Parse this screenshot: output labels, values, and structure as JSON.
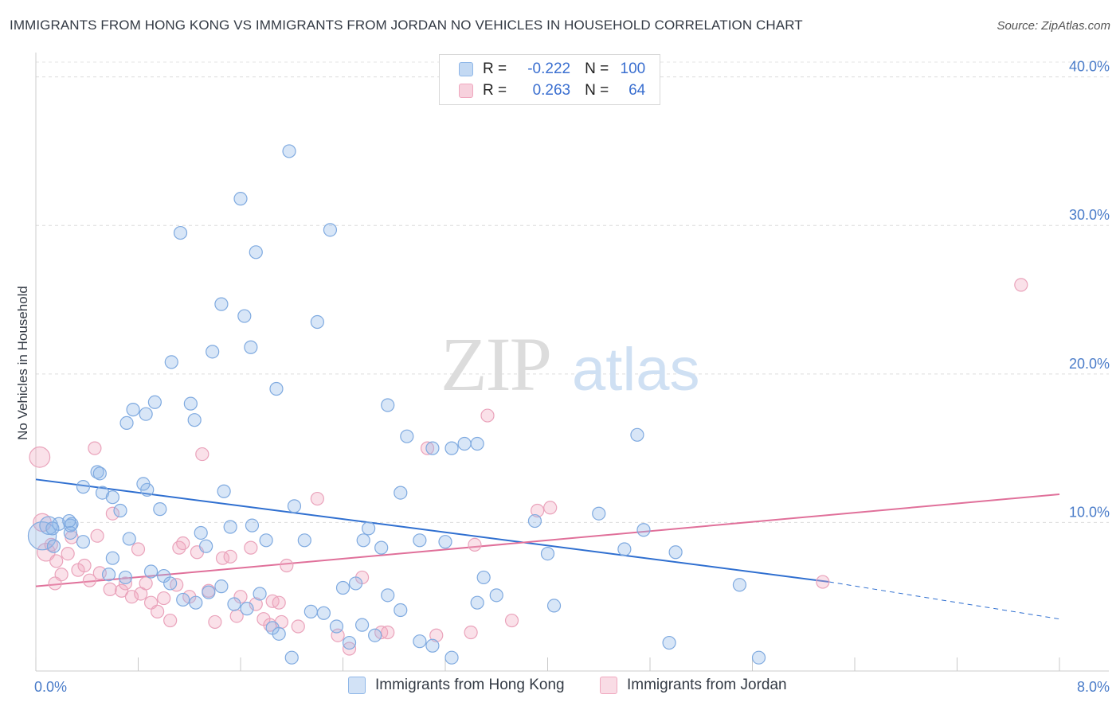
{
  "header": {
    "title": "IMMIGRANTS FROM HONG KONG VS IMMIGRANTS FROM JORDAN NO VEHICLES IN HOUSEHOLD CORRELATION CHART",
    "source": "Source: ZipAtlas.com"
  },
  "watermark": {
    "zip": "ZIP",
    "atlas": "atlas"
  },
  "legend": {
    "r_label": "R =",
    "n_label": "N =",
    "rows": [
      {
        "r": "-0.222",
        "n": "100",
        "color": "#8fb7e8"
      },
      {
        "r": "0.263",
        "n": "64",
        "color": "#f0a8bf"
      }
    ]
  },
  "bottom_legend": [
    {
      "label": "Immigrants from Hong Kong",
      "color": "#8fb7e8"
    },
    {
      "label": "Immigrants from Jordan",
      "color": "#f0a8bf"
    }
  ],
  "chart_data": {
    "type": "scatter",
    "title": "IMMIGRANTS FROM HONG KONG VS IMMIGRANTS FROM JORDAN NO VEHICLES IN HOUSEHOLD CORRELATION CHART",
    "xlabel": "",
    "ylabel": "No Vehicles in Household",
    "xlim": [
      0.0,
      8.0
    ],
    "ylim": [
      0.0,
      41.0
    ],
    "x_tick_labels": [
      "0.0%",
      "8.0%"
    ],
    "y_ticks": [
      10,
      20,
      30,
      40
    ],
    "y_tick_labels": [
      "10.0%",
      "20.0%",
      "30.0%",
      "40.0%"
    ],
    "grid": true,
    "colors": {
      "hong_kong": "#5b8fd6",
      "jordan": "#e6789c",
      "hk_line": "#2f6fd0",
      "jo_line": "#e0709a"
    },
    "series": [
      {
        "name": "Immigrants from Hong Kong",
        "trend": {
          "x0": 0.0,
          "y0": 12.9,
          "x1": 6.2,
          "y1": 6.0,
          "dash_to_x": 8.0,
          "dash_to_y": 3.5
        },
        "points": [
          [
            0.05,
            9.1,
            22
          ],
          [
            0.1,
            9.8,
            14
          ],
          [
            0.18,
            9.9,
            10
          ],
          [
            0.13,
            9.6,
            10
          ],
          [
            0.28,
            9.9,
            10
          ],
          [
            0.27,
            9.8,
            10
          ],
          [
            0.26,
            10.1,
            10
          ],
          [
            0.27,
            9.3,
            10
          ],
          [
            0.14,
            8.4,
            10
          ],
          [
            0.37,
            8.7,
            10
          ],
          [
            0.37,
            12.4,
            10
          ],
          [
            0.52,
            12.0,
            10
          ],
          [
            0.48,
            13.4,
            10
          ],
          [
            0.5,
            13.3,
            10
          ],
          [
            0.6,
            11.7,
            10
          ],
          [
            0.66,
            10.8,
            10
          ],
          [
            0.71,
            16.7,
            10
          ],
          [
            0.76,
            17.6,
            10
          ],
          [
            0.73,
            8.9,
            10
          ],
          [
            0.86,
            17.3,
            10
          ],
          [
            0.87,
            12.2,
            10
          ],
          [
            0.93,
            18.1,
            10
          ],
          [
            0.84,
            12.6,
            10
          ],
          [
            0.97,
            10.9,
            10
          ],
          [
            1.06,
            20.8,
            10
          ],
          [
            1.13,
            29.5,
            10
          ],
          [
            1.21,
            18.0,
            10
          ],
          [
            1.24,
            16.9,
            10
          ],
          [
            1.29,
            9.3,
            10
          ],
          [
            1.33,
            8.4,
            10
          ],
          [
            1.38,
            21.5,
            10
          ],
          [
            1.45,
            24.7,
            10
          ],
          [
            1.47,
            12.1,
            10
          ],
          [
            1.52,
            9.7,
            10
          ],
          [
            1.6,
            31.8,
            10
          ],
          [
            1.63,
            23.9,
            10
          ],
          [
            1.68,
            21.8,
            10
          ],
          [
            1.72,
            28.2,
            10
          ],
          [
            1.69,
            9.8,
            10
          ],
          [
            1.8,
            8.8,
            10
          ],
          [
            1.88,
            19.0,
            10
          ],
          [
            1.98,
            35.0,
            10
          ],
          [
            2.02,
            11.1,
            10
          ],
          [
            2.1,
            8.8,
            10
          ],
          [
            2.2,
            23.5,
            10
          ],
          [
            2.3,
            29.7,
            10
          ],
          [
            2.4,
            5.6,
            10
          ],
          [
            2.5,
            5.9,
            10
          ],
          [
            2.56,
            8.8,
            10
          ],
          [
            2.6,
            9.6,
            10
          ],
          [
            2.7,
            8.3,
            10
          ],
          [
            2.75,
            17.9,
            10
          ],
          [
            2.85,
            12.0,
            10
          ],
          [
            2.9,
            15.8,
            10
          ],
          [
            3.0,
            8.8,
            10
          ],
          [
            3.1,
            15.0,
            10
          ],
          [
            3.2,
            8.7,
            10
          ],
          [
            3.25,
            15.0,
            10
          ],
          [
            3.35,
            15.3,
            10
          ],
          [
            3.45,
            15.3,
            10
          ],
          [
            3.5,
            6.3,
            10
          ],
          [
            3.6,
            5.1,
            10
          ],
          [
            3.9,
            10.1,
            10
          ],
          [
            4.0,
            7.9,
            10
          ],
          [
            4.05,
            4.4,
            10
          ],
          [
            4.4,
            10.6,
            10
          ],
          [
            4.6,
            8.2,
            10
          ],
          [
            4.7,
            15.9,
            10
          ],
          [
            4.75,
            9.5,
            10
          ],
          [
            4.95,
            1.9,
            10
          ],
          [
            5.0,
            8.0,
            10
          ],
          [
            5.5,
            5.8,
            10
          ],
          [
            5.65,
            0.9,
            10
          ],
          [
            0.57,
            6.5,
            10
          ],
          [
            0.6,
            7.6,
            10
          ],
          [
            0.7,
            6.3,
            10
          ],
          [
            0.9,
            6.7,
            10
          ],
          [
            1.0,
            6.4,
            10
          ],
          [
            1.05,
            5.9,
            10
          ],
          [
            1.15,
            4.8,
            10
          ],
          [
            1.25,
            4.6,
            10
          ],
          [
            1.35,
            5.3,
            10
          ],
          [
            1.45,
            5.7,
            10
          ],
          [
            1.55,
            4.5,
            10
          ],
          [
            1.65,
            4.2,
            10
          ],
          [
            1.75,
            5.2,
            10
          ],
          [
            1.85,
            2.9,
            10
          ],
          [
            1.9,
            2.5,
            10
          ],
          [
            2.0,
            0.9,
            10
          ],
          [
            2.15,
            4.0,
            10
          ],
          [
            2.25,
            3.9,
            10
          ],
          [
            2.35,
            3.0,
            10
          ],
          [
            2.45,
            1.9,
            10
          ],
          [
            2.55,
            3.1,
            10
          ],
          [
            2.65,
            2.4,
            10
          ],
          [
            2.75,
            5.1,
            10
          ],
          [
            2.85,
            4.1,
            10
          ],
          [
            3.0,
            2.0,
            10
          ],
          [
            3.1,
            1.7,
            10
          ],
          [
            3.25,
            0.9,
            10
          ],
          [
            3.45,
            4.6,
            10
          ]
        ]
      },
      {
        "name": "Immigrants from Jordan",
        "trend": {
          "x0": 0.0,
          "y0": 5.7,
          "x1": 8.0,
          "y1": 11.9
        },
        "points": [
          [
            0.03,
            14.4,
            16
          ],
          [
            0.05,
            10.0,
            14
          ],
          [
            0.08,
            8.0,
            14
          ],
          [
            0.12,
            8.5,
            10
          ],
          [
            0.16,
            7.4,
            10
          ],
          [
            0.25,
            7.9,
            10
          ],
          [
            0.2,
            6.5,
            10
          ],
          [
            0.28,
            9.0,
            10
          ],
          [
            0.33,
            6.8,
            10
          ],
          [
            0.38,
            7.1,
            10
          ],
          [
            0.42,
            6.1,
            10
          ],
          [
            0.46,
            15.0,
            10
          ],
          [
            0.48,
            9.1,
            10
          ],
          [
            0.5,
            6.6,
            10
          ],
          [
            0.58,
            5.5,
            10
          ],
          [
            0.6,
            10.6,
            10
          ],
          [
            0.67,
            5.4,
            10
          ],
          [
            0.7,
            5.9,
            10
          ],
          [
            0.75,
            5.0,
            10
          ],
          [
            0.8,
            8.2,
            10
          ],
          [
            0.82,
            5.2,
            10
          ],
          [
            0.86,
            5.9,
            10
          ],
          [
            0.9,
            4.6,
            10
          ],
          [
            0.95,
            4.0,
            10
          ],
          [
            1.0,
            4.9,
            10
          ],
          [
            1.05,
            3.4,
            10
          ],
          [
            1.1,
            5.8,
            10
          ],
          [
            1.12,
            8.3,
            10
          ],
          [
            1.15,
            8.6,
            10
          ],
          [
            1.2,
            5.0,
            10
          ],
          [
            1.26,
            8.0,
            10
          ],
          [
            1.3,
            14.6,
            10
          ],
          [
            1.35,
            5.4,
            10
          ],
          [
            1.4,
            3.3,
            10
          ],
          [
            1.46,
            7.6,
            10
          ],
          [
            1.52,
            7.7,
            10
          ],
          [
            1.57,
            3.7,
            10
          ],
          [
            1.6,
            5.0,
            10
          ],
          [
            1.68,
            8.3,
            10
          ],
          [
            1.72,
            4.5,
            10
          ],
          [
            1.78,
            3.5,
            10
          ],
          [
            1.83,
            3.1,
            10
          ],
          [
            1.85,
            4.7,
            10
          ],
          [
            1.9,
            4.6,
            10
          ],
          [
            1.92,
            3.3,
            10
          ],
          [
            1.96,
            7.1,
            10
          ],
          [
            2.05,
            3.0,
            10
          ],
          [
            2.2,
            11.6,
            10
          ],
          [
            2.36,
            2.4,
            10
          ],
          [
            2.45,
            1.5,
            10
          ],
          [
            2.55,
            6.3,
            10
          ],
          [
            2.7,
            2.6,
            10
          ],
          [
            2.75,
            2.6,
            10
          ],
          [
            3.06,
            15.0,
            10
          ],
          [
            3.13,
            2.4,
            10
          ],
          [
            3.4,
            2.6,
            10
          ],
          [
            3.43,
            8.5,
            10
          ],
          [
            3.53,
            17.2,
            10
          ],
          [
            3.72,
            3.4,
            10
          ],
          [
            3.92,
            10.8,
            10
          ],
          [
            4.02,
            11.0,
            10
          ],
          [
            6.15,
            6.0,
            10
          ],
          [
            7.7,
            26.0,
            10
          ],
          [
            0.15,
            5.9,
            10
          ]
        ]
      }
    ]
  }
}
